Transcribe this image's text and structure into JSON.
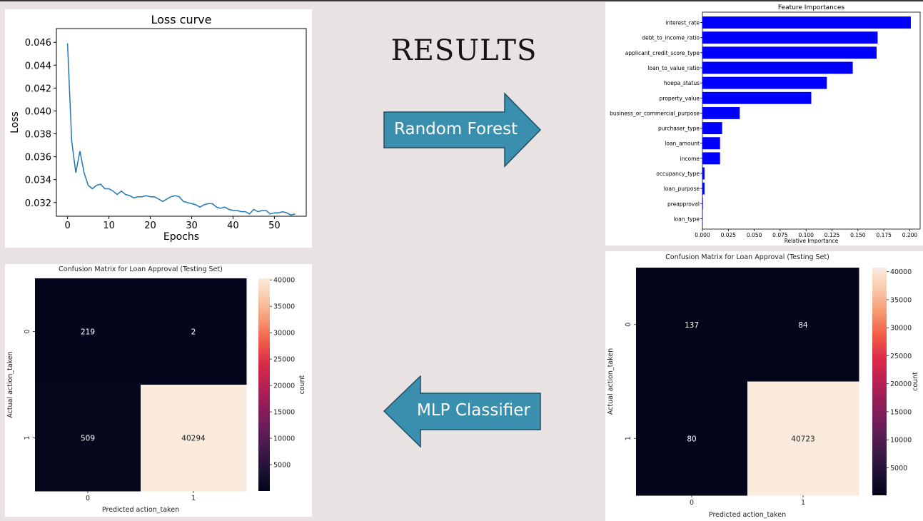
{
  "slide": {
    "title": "RESULTS",
    "arrow_rf_label": "Random Forest",
    "arrow_mlp_label": "MLP Classifier",
    "colors": {
      "background": "#e8e2e2",
      "arrow_fill": "#3a8fae",
      "arrow_stroke": "#1f4f63"
    }
  },
  "chart_data": [
    {
      "id": "loss",
      "type": "line",
      "title": "Loss curve",
      "xlabel": "Epochs",
      "ylabel": "Loss",
      "xlim": [
        -2.7,
        57.7
      ],
      "ylim": [
        0.0308,
        0.0472
      ],
      "xticks": [
        0,
        10,
        20,
        30,
        40,
        50
      ],
      "xtick_labels": [
        "0",
        "10",
        "20",
        "30",
        "40",
        "50"
      ],
      "yticks": [
        0.032,
        0.034,
        0.036,
        0.038,
        0.04,
        0.042,
        0.044,
        0.046
      ],
      "ytick_labels": [
        "0.032",
        "0.034",
        "0.036",
        "0.038",
        "0.040",
        "0.042",
        "0.044",
        "0.046"
      ],
      "color": "#1f77b4",
      "x": [
        0,
        1,
        2,
        3,
        4,
        5,
        6,
        7,
        8,
        9,
        10,
        11,
        12,
        13,
        14,
        15,
        16,
        17,
        18,
        19,
        20,
        21,
        22,
        23,
        24,
        25,
        26,
        27,
        28,
        29,
        30,
        31,
        32,
        33,
        34,
        35,
        36,
        37,
        38,
        39,
        40,
        41,
        42,
        43,
        44,
        45,
        46,
        47,
        48,
        49,
        50,
        51,
        52,
        53,
        54,
        55
      ],
      "values": [
        0.0459,
        0.0374,
        0.0346,
        0.0365,
        0.0346,
        0.0335,
        0.0332,
        0.0335,
        0.0336,
        0.0332,
        0.0332,
        0.033,
        0.0327,
        0.033,
        0.0327,
        0.0326,
        0.0324,
        0.0325,
        0.0325,
        0.0326,
        0.0325,
        0.0325,
        0.0323,
        0.0321,
        0.0323,
        0.0325,
        0.0326,
        0.0325,
        0.0321,
        0.032,
        0.0319,
        0.0318,
        0.0316,
        0.0318,
        0.0319,
        0.0319,
        0.0316,
        0.0315,
        0.0316,
        0.0314,
        0.0313,
        0.0313,
        0.0312,
        0.0312,
        0.031,
        0.0314,
        0.0312,
        0.0313,
        0.0313,
        0.031,
        0.0311,
        0.0311,
        0.0312,
        0.0311,
        0.0309,
        0.031
      ]
    },
    {
      "id": "importances",
      "type": "bar",
      "orientation": "horizontal",
      "title": "Feature Importances",
      "xlabel": "Relative Importance",
      "xlim": [
        0,
        0.21
      ],
      "xticks": [
        0,
        0.025,
        0.05,
        0.075,
        0.1,
        0.125,
        0.15,
        0.175,
        0.2
      ],
      "xtick_labels": [
        "0.000",
        "0.025",
        "0.050",
        "0.075",
        "0.100",
        "0.125",
        "0.150",
        "0.175",
        "0.200"
      ],
      "color": "#0000ff",
      "categories": [
        "interest_rate",
        "debt_to_income_ratio",
        "applicant_credit_score_type",
        "loan_to_value_ratio",
        "hoepa_status",
        "property_value",
        "business_or_commercial_purpose",
        "purchaser_type",
        "loan_amount",
        "income",
        "occupancy_type",
        "loan_purpose",
        "preapproval",
        "loan_type"
      ],
      "values": [
        0.201,
        0.169,
        0.168,
        0.145,
        0.12,
        0.105,
        0.036,
        0.019,
        0.017,
        0.017,
        0.002,
        0.002,
        0.0005,
        0.0002
      ]
    },
    {
      "id": "cm_mlp",
      "type": "heatmap",
      "title": "Confusion Matrix for Loan Approval (Testing Set)",
      "xlabel": "Predicted action_taken",
      "ylabel": "Actual action_taken",
      "colorbar_label": "count",
      "row_labels": [
        "0",
        "1"
      ],
      "col_labels": [
        "0",
        "1"
      ],
      "values": [
        [
          219,
          2
        ],
        [
          509,
          40294
        ]
      ],
      "value_labels": [
        [
          "219",
          "2"
        ],
        [
          "509",
          "40294"
        ]
      ],
      "colorbar_ticks": [
        5000,
        10000,
        15000,
        20000,
        25000,
        30000,
        35000,
        40000
      ],
      "colorbar_tick_labels": [
        "5000",
        "10000",
        "15000",
        "20000",
        "25000",
        "30000",
        "35000",
        "40000"
      ],
      "vmin": 2,
      "vmax": 40294
    },
    {
      "id": "cm_rf",
      "type": "heatmap",
      "title": "Confusion Matrix for Loan Approval (Testing Set)",
      "xlabel": "Predicted action_taken",
      "ylabel": "Actual action_taken",
      "colorbar_label": "count",
      "row_labels": [
        "0",
        "1"
      ],
      "col_labels": [
        "0",
        "1"
      ],
      "values": [
        [
          137,
          84
        ],
        [
          80,
          40723
        ]
      ],
      "value_labels": [
        [
          "137",
          "84"
        ],
        [
          "80",
          "40723"
        ]
      ],
      "colorbar_ticks": [
        5000,
        10000,
        15000,
        20000,
        25000,
        30000,
        35000,
        40000
      ],
      "colorbar_tick_labels": [
        "5000",
        "10000",
        "15000",
        "20000",
        "25000",
        "30000",
        "35000",
        "40000"
      ],
      "vmin": 80,
      "vmax": 40723
    }
  ]
}
